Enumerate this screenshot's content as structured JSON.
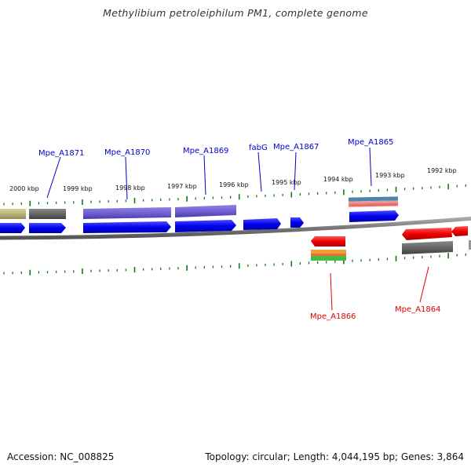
{
  "title": "Methylibium petroleiphilum PM1, complete genome",
  "footer": {
    "accession": "Accession: NC_008825",
    "stats": "Topology: circular; Length: 4,044,195 bp; Genes: 3,864"
  },
  "scale_labels": [
    "2000 kbp",
    "1999 kbp",
    "1998 kbp",
    "1997 kbp",
    "1996 kbp",
    "1995 kbp",
    "1994 kbp",
    "1993 kbp",
    "1992 kbp"
  ],
  "top_gene_labels": [
    "Mpe_A1871",
    "Mpe_A1870",
    "Mpe_A1869",
    "fabG",
    "Mpe_A1867",
    "Mpe_A1865"
  ],
  "bottom_gene_labels": [
    "Mpe_A1866",
    "Mpe_A1864"
  ],
  "colors": {
    "forward_gene": "#0000ee",
    "reverse_gene": "#ee0000",
    "top_label": "#0000cc",
    "bottom_label": "#dd0000",
    "tick": "#117711",
    "backbone": "#888888",
    "domain_purple": "#6a5acd",
    "domain_gray": "#666666",
    "domain_olive": "#b8b47a"
  }
}
